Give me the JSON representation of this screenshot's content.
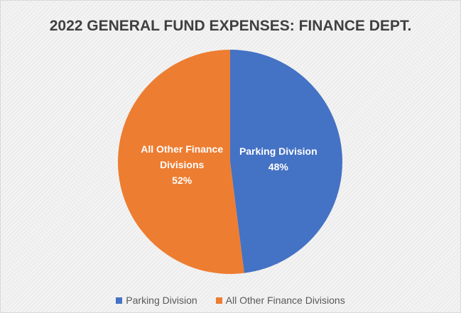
{
  "chart_data": {
    "type": "pie",
    "title": "2022 GENERAL FUND EXPENSES: FINANCE DEPT.",
    "categories": [
      "Parking Division",
      "All Other Finance Divisions"
    ],
    "values": [
      48,
      52
    ],
    "value_labels": [
      "48%",
      "52%"
    ],
    "colors": [
      "#4472c4",
      "#ed7d31"
    ],
    "legend": "bottom"
  }
}
